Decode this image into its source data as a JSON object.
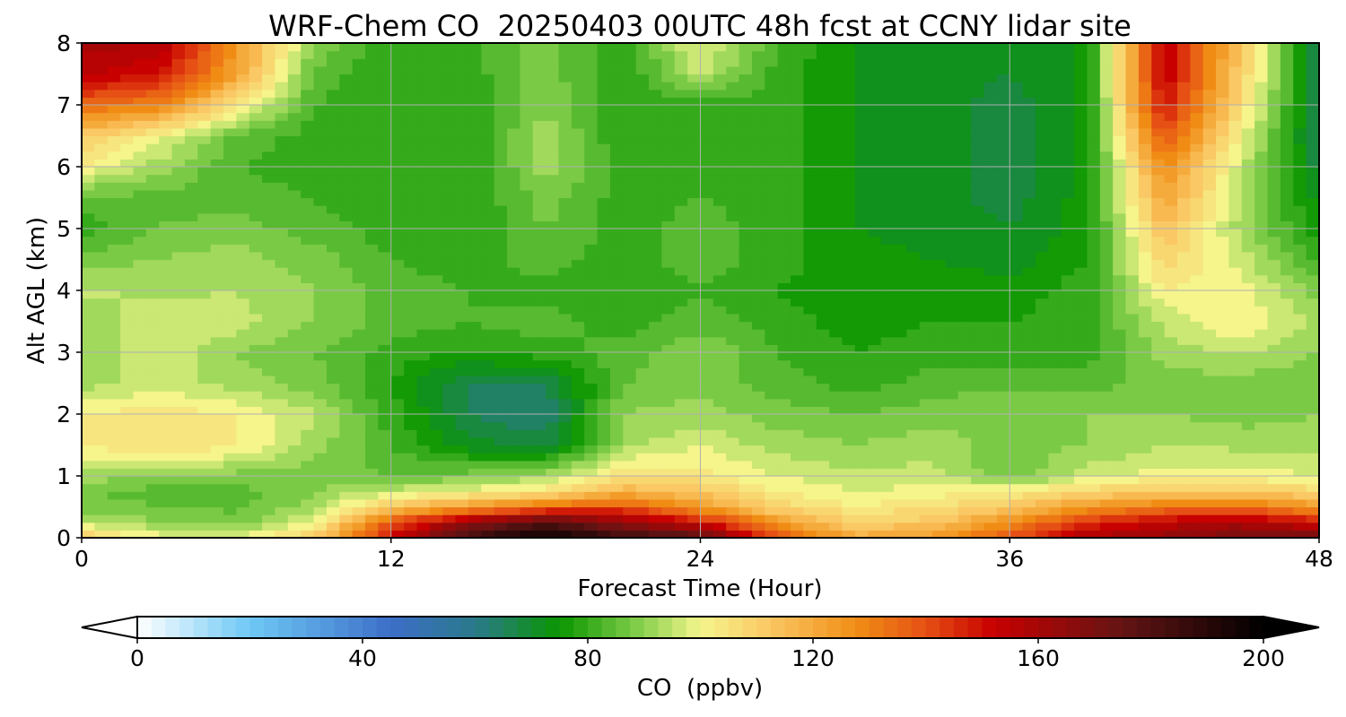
{
  "chart_data": {
    "type": "heatmap",
    "title": "WRF-Chem CO  20250403 00UTC 48h fcst at CCNY lidar site",
    "xlabel": "Forecast Time (Hour)",
    "ylabel": "Alt AGL (km)",
    "xlim": [
      0,
      48
    ],
    "ylim": [
      0,
      8
    ],
    "xticks": [
      "0",
      "12",
      "24",
      "36",
      "48"
    ],
    "yticks": [
      "0",
      "1",
      "2",
      "3",
      "4",
      "5",
      "6",
      "7",
      "8"
    ],
    "grid": true,
    "x": [
      0,
      3,
      6,
      9,
      12,
      15,
      18,
      21,
      24,
      27,
      30,
      33,
      36,
      39,
      42,
      45,
      48
    ],
    "y": [
      0,
      0.25,
      0.5,
      0.75,
      1,
      1.5,
      2,
      2.5,
      3,
      3.5,
      4,
      4.5,
      5,
      5.5,
      6,
      6.5,
      7,
      7.5,
      8
    ],
    "z": [
      [
        112,
        100,
        98,
        110,
        150,
        185,
        200,
        185,
        180,
        140,
        120,
        125,
        140,
        160,
        165,
        170,
        175
      ],
      [
        95,
        90,
        88,
        98,
        140,
        165,
        180,
        165,
        150,
        125,
        110,
        112,
        128,
        145,
        155,
        160,
        150
      ],
      [
        88,
        86,
        85,
        92,
        112,
        125,
        135,
        140,
        125,
        108,
        102,
        106,
        112,
        125,
        132,
        135,
        125
      ],
      [
        86,
        84,
        84,
        90,
        96,
        100,
        105,
        118,
        112,
        102,
        98,
        100,
        103,
        108,
        112,
        112,
        108
      ],
      [
        92,
        90,
        88,
        88,
        86,
        88,
        92,
        106,
        104,
        98,
        95,
        96,
        86,
        96,
        100,
        100,
        98
      ],
      [
        102,
        106,
        103,
        92,
        82,
        72,
        68,
        92,
        98,
        92,
        90,
        92,
        88,
        90,
        94,
        93,
        92
      ],
      [
        102,
        104,
        102,
        95,
        80,
        66,
        62,
        90,
        92,
        88,
        86,
        88,
        90,
        90,
        90,
        88,
        90
      ],
      [
        92,
        96,
        92,
        88,
        78,
        66,
        66,
        86,
        88,
        84,
        80,
        84,
        85,
        84,
        88,
        88,
        86
      ],
      [
        90,
        98,
        90,
        86,
        80,
        78,
        80,
        84,
        90,
        82,
        78,
        80,
        80,
        80,
        92,
        95,
        90
      ],
      [
        92,
        96,
        96,
        90,
        84,
        82,
        84,
        80,
        84,
        80,
        76,
        78,
        78,
        80,
        95,
        102,
        92
      ],
      [
        95,
        93,
        94,
        90,
        84,
        82,
        80,
        78,
        82,
        78,
        75,
        76,
        76,
        80,
        102,
        100,
        88
      ],
      [
        88,
        90,
        92,
        88,
        82,
        80,
        84,
        80,
        84,
        80,
        75,
        74,
        72,
        78,
        108,
        96,
        80
      ],
      [
        80,
        86,
        88,
        84,
        80,
        78,
        86,
        80,
        84,
        80,
        74,
        73,
        70,
        76,
        115,
        92,
        76
      ],
      [
        84,
        85,
        84,
        82,
        78,
        78,
        88,
        80,
        82,
        80,
        74,
        72,
        68,
        76,
        122,
        92,
        72
      ],
      [
        102,
        92,
        82,
        80,
        78,
        78,
        92,
        80,
        80,
        80,
        74,
        72,
        68,
        75,
        128,
        95,
        68
      ],
      [
        112,
        100,
        85,
        80,
        78,
        78,
        92,
        78,
        78,
        80,
        74,
        72,
        68,
        75,
        140,
        100,
        65
      ],
      [
        135,
        130,
        105,
        82,
        78,
        78,
        90,
        78,
        80,
        80,
        74,
        72,
        68,
        75,
        150,
        106,
        65
      ],
      [
        155,
        150,
        122,
        85,
        78,
        80,
        88,
        78,
        95,
        80,
        74,
        72,
        70,
        75,
        155,
        110,
        65
      ],
      [
        160,
        158,
        125,
        90,
        78,
        80,
        88,
        78,
        100,
        82,
        74,
        72,
        70,
        75,
        155,
        112,
        65
      ]
    ],
    "colorbar": {
      "label": "CO  (ppbv)",
      "min": 0,
      "max": 200,
      "ticks": [
        "0",
        "40",
        "80",
        "120",
        "160",
        "200"
      ],
      "extend": "both",
      "stops": [
        {
          "v": 0,
          "c": "#ffffff"
        },
        {
          "v": 20,
          "c": "#6ec8f5"
        },
        {
          "v": 45,
          "c": "#3c6ec8"
        },
        {
          "v": 60,
          "c": "#2a7a8a"
        },
        {
          "v": 75,
          "c": "#0a9600"
        },
        {
          "v": 90,
          "c": "#8cd250"
        },
        {
          "v": 100,
          "c": "#f5f58c"
        },
        {
          "v": 112,
          "c": "#fac864"
        },
        {
          "v": 128,
          "c": "#f08c14"
        },
        {
          "v": 140,
          "c": "#e65014"
        },
        {
          "v": 152,
          "c": "#c80000"
        },
        {
          "v": 175,
          "c": "#641414"
        },
        {
          "v": 200,
          "c": "#000000"
        }
      ]
    }
  }
}
